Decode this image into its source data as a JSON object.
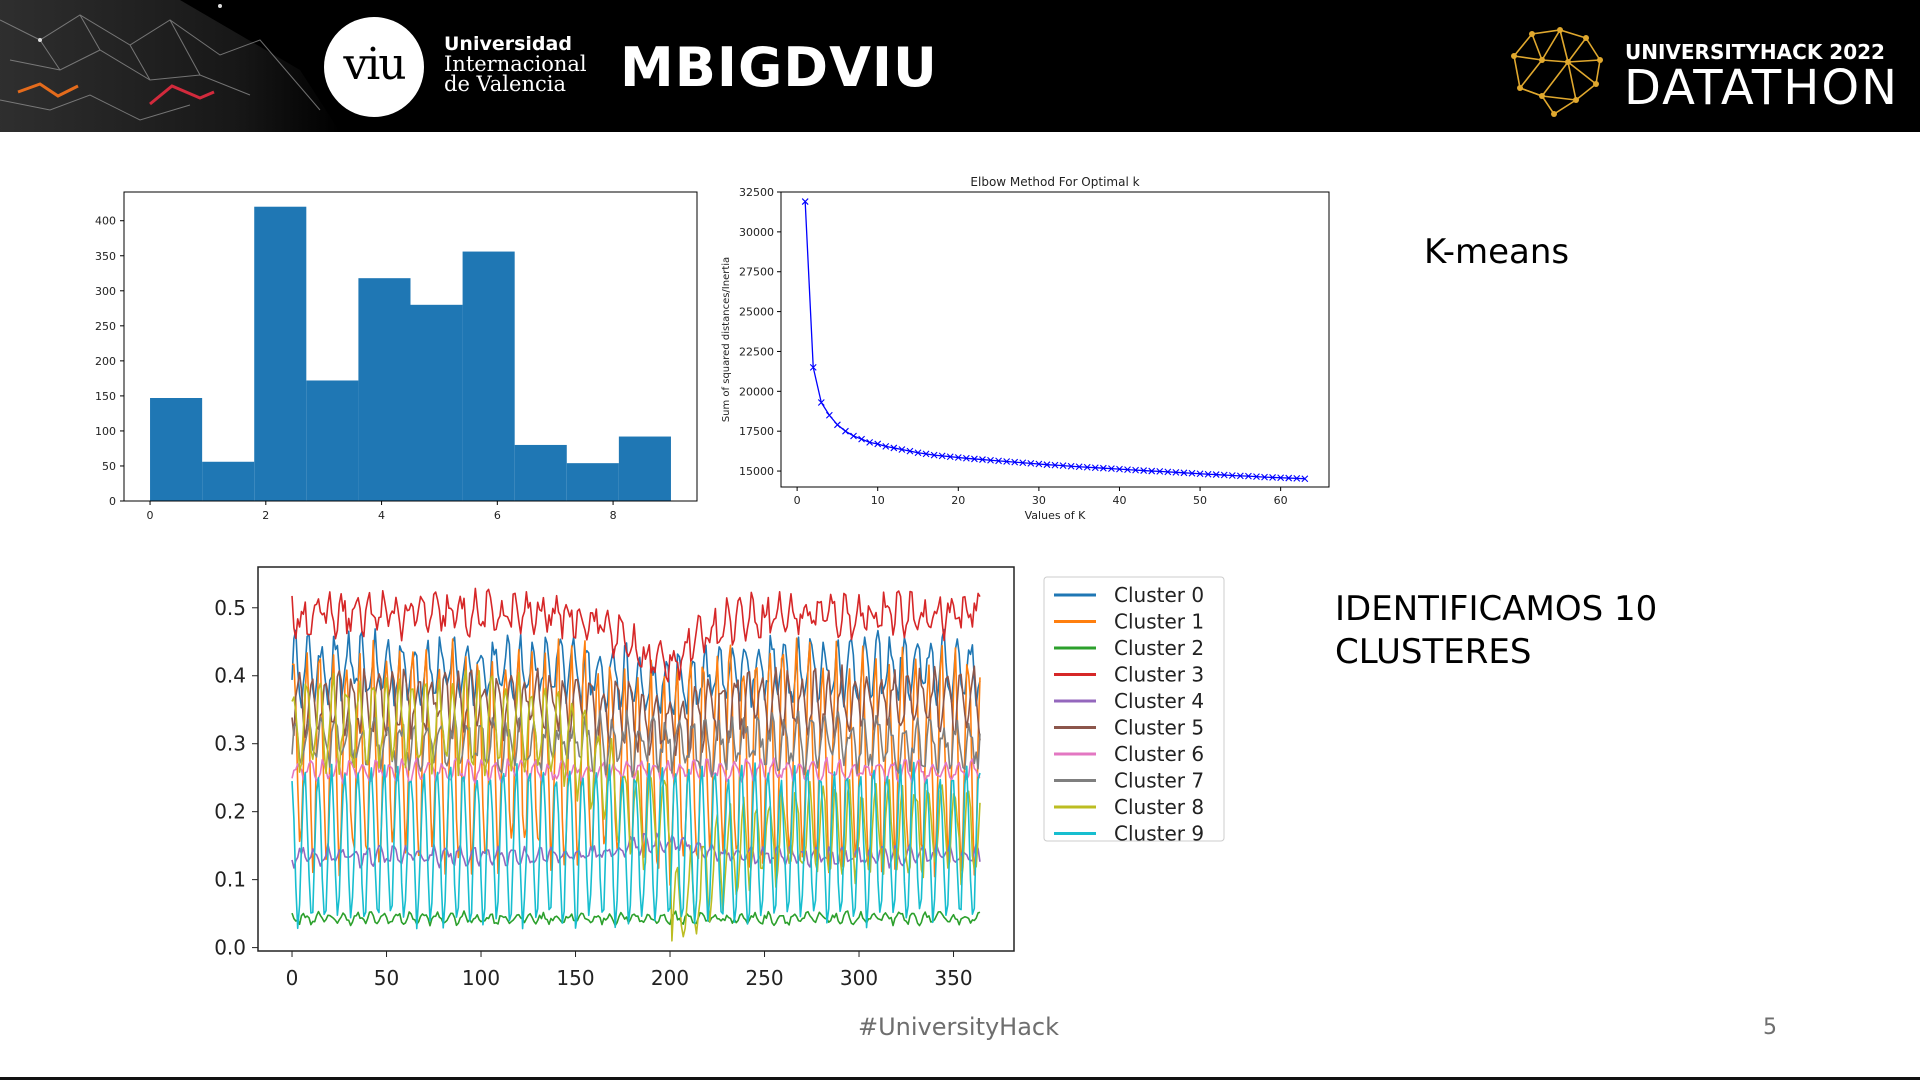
{
  "header": {
    "university_line1": "Universidad",
    "university_line2": "Internacional",
    "university_line3": "de Valencia",
    "university_logo_text": "viu",
    "team_name": "MBIGDVIU",
    "event_line1": "UNIVERSITYHACK 2022",
    "event_line2": "DATATHON",
    "event_logo_icon": "brain-network-icon"
  },
  "labels": {
    "kmeans": "K-means",
    "identified": "IDENTIFICAMOS 10\nCLUSTERES"
  },
  "footer": {
    "hashtag": "#UniversityHack",
    "page_number": "5"
  },
  "colors": {
    "histogram_bar": "#1f77b4",
    "elbow_line": "#0000ff",
    "header_bg": "#000000",
    "accent": "#e0a82e"
  },
  "chart_data": [
    {
      "type": "bar",
      "variant": "histogram",
      "bin_edges": [
        0,
        0.9,
        1.8,
        2.7,
        3.6,
        4.5,
        5.4,
        6.3,
        7.2,
        8.1,
        9.0
      ],
      "values": [
        147,
        56,
        420,
        172,
        318,
        280,
        356,
        80,
        54,
        92
      ],
      "xticks": [
        0,
        2,
        4,
        6,
        8
      ],
      "yticks": [
        0,
        50,
        100,
        150,
        200,
        250,
        300,
        350,
        400
      ],
      "xlim": [
        -0.45,
        9.45
      ],
      "ylim": [
        0,
        441
      ]
    },
    {
      "type": "line",
      "title": "Elbow Method For Optimal k",
      "xlabel": "Values of K",
      "ylabel": "Sum of squared distances/Inertia",
      "x": [
        1,
        2,
        3,
        4,
        5,
        6,
        7,
        8,
        9,
        10,
        11,
        12,
        13,
        14,
        15,
        16,
        17,
        18,
        19,
        20,
        21,
        22,
        23,
        24,
        25,
        26,
        27,
        28,
        29,
        30,
        31,
        32,
        33,
        34,
        35,
        36,
        37,
        38,
        39,
        40,
        41,
        42,
        43,
        44,
        45,
        46,
        47,
        48,
        49,
        50,
        51,
        52,
        53,
        54,
        55,
        56,
        57,
        58,
        59,
        60,
        61,
        62,
        63
      ],
      "y": [
        31900,
        21500,
        19300,
        18500,
        17900,
        17500,
        17200,
        17000,
        16800,
        16700,
        16550,
        16450,
        16350,
        16250,
        16150,
        16080,
        16000,
        15950,
        15900,
        15850,
        15800,
        15760,
        15720,
        15680,
        15640,
        15600,
        15560,
        15520,
        15480,
        15440,
        15400,
        15370,
        15340,
        15300,
        15270,
        15240,
        15210,
        15180,
        15150,
        15120,
        15090,
        15060,
        15030,
        15000,
        14980,
        14950,
        14920,
        14890,
        14860,
        14830,
        14800,
        14780,
        14750,
        14720,
        14700,
        14680,
        14650,
        14620,
        14600,
        14580,
        14560,
        14540,
        14520
      ],
      "marker": "x",
      "xticks": [
        0,
        10,
        20,
        30,
        40,
        50,
        60
      ],
      "yticks": [
        15000,
        17500,
        20000,
        22500,
        25000,
        27500,
        30000,
        32500
      ],
      "xlim": [
        -2,
        66
      ],
      "ylim": [
        14000,
        32500
      ]
    },
    {
      "type": "line",
      "x_range": [
        0,
        364
      ],
      "xticks": [
        0,
        50,
        100,
        150,
        200,
        250,
        300,
        350
      ],
      "yticks": [
        "0.0",
        "0.1",
        "0.2",
        "0.3",
        "0.4",
        "0.5"
      ],
      "xlim": [
        -18,
        382
      ],
      "ylim": [
        -0.005,
        0.56
      ],
      "legend_position": "outside-right-top",
      "series": [
        {
          "name": "Cluster 0",
          "color": "#1f77b4",
          "mean": 0.41,
          "amp": 0.04,
          "period": 7,
          "noise": 0.02,
          "dip": 0.03
        },
        {
          "name": "Cluster 1",
          "color": "#ff7f0e",
          "mean": 0.28,
          "amp": 0.15,
          "period": 7,
          "noise": 0.03,
          "dip": 0.03
        },
        {
          "name": "Cluster 2",
          "color": "#2ca02c",
          "mean": 0.043,
          "amp": 0.006,
          "period": 7,
          "noise": 0.005,
          "dip": 0.0
        },
        {
          "name": "Cluster 3",
          "color": "#d62728",
          "mean": 0.49,
          "amp": 0.02,
          "period": 7,
          "noise": 0.02,
          "dip": 0.07
        },
        {
          "name": "Cluster 4",
          "color": "#9467bd",
          "mean": 0.135,
          "amp": 0.01,
          "period": 7,
          "noise": 0.008,
          "dip": -0.02
        },
        {
          "name": "Cluster 5",
          "color": "#8c564b",
          "mean": 0.36,
          "amp": 0.04,
          "period": 7,
          "noise": 0.02,
          "dip": 0.03
        },
        {
          "name": "Cluster 6",
          "color": "#e377c2",
          "mean": 0.26,
          "amp": 0.012,
          "period": 7,
          "noise": 0.008,
          "dip": 0.0
        },
        {
          "name": "Cluster 7",
          "color": "#7f7f7f",
          "mean": 0.3,
          "amp": 0.03,
          "period": 7,
          "noise": 0.02,
          "dip": 0.0
        },
        {
          "name": "Cluster 8",
          "color": "#bcbd22",
          "mean": 0.33,
          "amp": 0.06,
          "period": 7,
          "noise": 0.02,
          "dip": 0.0
        },
        {
          "name": "Cluster 9",
          "color": "#17becf",
          "mean": 0.15,
          "amp": 0.11,
          "period": 7,
          "noise": 0.015,
          "dip": 0.0
        }
      ]
    }
  ]
}
